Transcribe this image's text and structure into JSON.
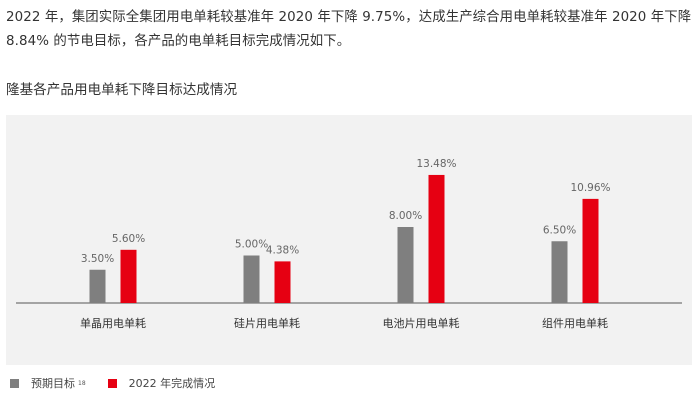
{
  "intro_text": "2022 年，集团实际全集团用电单耗较基准年 2020 年下降 9.75%，达成生产综合用电单耗较基准年 2020 年下降 8.84% 的节电目标，各产品的电单耗目标完成情况如下。",
  "chart_data": {
    "type": "bar",
    "title": "隆基各产品用电单耗下降目标达成情况",
    "categories": [
      "单晶用电单耗",
      "硅片用电单耗",
      "电池片用电单耗",
      "组件用电单耗"
    ],
    "series": [
      {
        "name": "预期目标",
        "values": [
          3.5,
          5.0,
          8.0,
          6.5
        ],
        "labels": [
          "3.50%",
          "5.00%",
          "8.00%",
          "6.50%"
        ],
        "color": "#7f7f7f"
      },
      {
        "name": "2022 年完成情况",
        "values": [
          5.6,
          4.38,
          13.48,
          10.96
        ],
        "labels": [
          "5.60%",
          "4.38%",
          "13.48%",
          "10.96%"
        ],
        "color": "#e60012"
      }
    ],
    "legend_note": "18",
    "ylim": [
      0,
      16
    ],
    "grid": false,
    "legend_position": "bottom-left"
  },
  "colors": {
    "panel_bg": "#f2f2f2",
    "axis": "#555555",
    "label": "#666666"
  }
}
